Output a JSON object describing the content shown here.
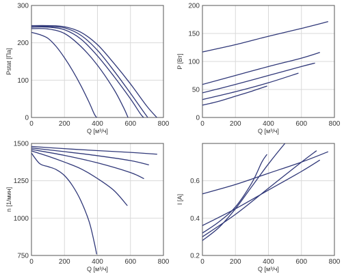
{
  "colors": {
    "curve": "#2f3778",
    "axis": "#555555",
    "grid": "#d9d9d9",
    "text": "#333333"
  },
  "chart_data": [
    {
      "id": "pstat",
      "type": "line",
      "xlabel": "Q [м³/ч]",
      "ylabel": "Pstat [Па]",
      "xlim": [
        0,
        800
      ],
      "ylim": [
        0,
        300
      ],
      "xticks": [
        0,
        200,
        400,
        600,
        800
      ],
      "yticks": [
        0,
        100,
        200,
        300
      ],
      "grid": true,
      "series": [
        {
          "points": [
            [
              0,
              228
            ],
            [
              50,
              222
            ],
            [
              100,
              212
            ],
            [
              150,
              190
            ],
            [
              200,
              160
            ],
            [
              250,
              125
            ],
            [
              300,
              85
            ],
            [
              350,
              40
            ],
            [
              380,
              10
            ],
            [
              395,
              0
            ]
          ]
        },
        {
          "points": [
            [
              0,
              238
            ],
            [
              100,
              237
            ],
            [
              200,
              225
            ],
            [
              300,
              190
            ],
            [
              400,
              140
            ],
            [
              500,
              75
            ],
            [
              560,
              25
            ],
            [
              585,
              0
            ]
          ]
        },
        {
          "points": [
            [
              0,
              242
            ],
            [
              100,
              242
            ],
            [
              200,
              235
            ],
            [
              300,
              210
            ],
            [
              400,
              165
            ],
            [
              500,
              110
            ],
            [
              600,
              50
            ],
            [
              660,
              10
            ],
            [
              680,
              0
            ]
          ]
        },
        {
          "points": [
            [
              0,
              245
            ],
            [
              100,
              244
            ],
            [
              200,
              240
            ],
            [
              300,
              220
            ],
            [
              400,
              180
            ],
            [
              500,
              125
            ],
            [
              600,
              65
            ],
            [
              680,
              15
            ],
            [
              705,
              0
            ]
          ]
        },
        {
          "points": [
            [
              0,
              246
            ],
            [
              100,
              246
            ],
            [
              200,
              243
            ],
            [
              300,
              228
            ],
            [
              400,
              195
            ],
            [
              500,
              145
            ],
            [
              600,
              90
            ],
            [
              700,
              30
            ],
            [
              760,
              0
            ]
          ]
        }
      ]
    },
    {
      "id": "power",
      "type": "line",
      "xlabel": "Q [м³/ч]",
      "ylabel": "P [Вт]",
      "xlim": [
        0,
        800
      ],
      "ylim": [
        0,
        200
      ],
      "xticks": [
        0,
        200,
        400,
        600,
        800
      ],
      "yticks": [
        0,
        50,
        100,
        150,
        200
      ],
      "grid": true,
      "series": [
        {
          "points": [
            [
              0,
              117
            ],
            [
              200,
              130
            ],
            [
              400,
              145
            ],
            [
              600,
              159
            ],
            [
              760,
              171
            ]
          ]
        },
        {
          "points": [
            [
              0,
              59
            ],
            [
              200,
              75
            ],
            [
              400,
              91
            ],
            [
              600,
              106
            ],
            [
              710,
              116
            ]
          ]
        },
        {
          "points": [
            [
              0,
              44
            ],
            [
              200,
              59
            ],
            [
              400,
              75
            ],
            [
              600,
              91
            ],
            [
              680,
              97
            ]
          ]
        },
        {
          "points": [
            [
              0,
              32
            ],
            [
              200,
              46
            ],
            [
              400,
              62
            ],
            [
              580,
              79
            ]
          ]
        },
        {
          "points": [
            [
              0,
              22
            ],
            [
              100,
              29
            ],
            [
              200,
              38
            ],
            [
              300,
              47
            ],
            [
              390,
              56
            ]
          ]
        }
      ]
    },
    {
      "id": "speed",
      "type": "line",
      "xlabel": "Q [м³/ч]",
      "ylabel": "n [1/мин]",
      "xlim": [
        0,
        800
      ],
      "ylim": [
        750,
        1500
      ],
      "xticks": [
        0,
        200,
        400,
        600,
        800
      ],
      "yticks": [
        750,
        1000,
        1250,
        1500
      ],
      "ytick_labels": [
        "750",
        "1000",
        "1250",
        "1500"
      ],
      "grid": true,
      "series": [
        {
          "points": [
            [
              0,
              1480
            ],
            [
              200,
              1465
            ],
            [
              400,
              1452
            ],
            [
              600,
              1440
            ],
            [
              760,
              1428
            ]
          ]
        },
        {
          "points": [
            [
              0,
              1470
            ],
            [
              200,
              1445
            ],
            [
              400,
              1418
            ],
            [
              600,
              1385
            ],
            [
              710,
              1357
            ]
          ]
        },
        {
          "points": [
            [
              0,
              1460
            ],
            [
              200,
              1420
            ],
            [
              400,
              1370
            ],
            [
              600,
              1305
            ],
            [
              680,
              1265
            ]
          ]
        },
        {
          "points": [
            [
              0,
              1450
            ],
            [
              100,
              1415
            ],
            [
              200,
              1375
            ],
            [
              300,
              1330
            ],
            [
              400,
              1265
            ],
            [
              500,
              1185
            ],
            [
              580,
              1085
            ]
          ]
        },
        {
          "points": [
            [
              0,
              1435
            ],
            [
              50,
              1365
            ],
            [
              100,
              1345
            ],
            [
              150,
              1325
            ],
            [
              200,
              1285
            ],
            [
              250,
              1215
            ],
            [
              300,
              1115
            ],
            [
              350,
              975
            ],
            [
              380,
              840
            ],
            [
              395,
              760
            ]
          ]
        }
      ]
    },
    {
      "id": "current",
      "type": "line",
      "xlabel": "Q [м³/ч]",
      "ylabel": "I [A]",
      "xlim": [
        0,
        800
      ],
      "ylim": [
        0.2,
        0.8
      ],
      "xticks": [
        0,
        200,
        400,
        600,
        800
      ],
      "yticks": [
        0.2,
        0.4,
        0.6
      ],
      "ytick_labels": [
        "0.2",
        "0.4",
        "0.6"
      ],
      "grid": true,
      "series": [
        {
          "points": [
            [
              0,
              0.53
            ],
            [
              200,
              0.58
            ],
            [
              400,
              0.64
            ],
            [
              600,
              0.7
            ],
            [
              760,
              0.755
            ]
          ]
        },
        {
          "points": [
            [
              0,
              0.36
            ],
            [
              200,
              0.45
            ],
            [
              400,
              0.55
            ],
            [
              600,
              0.65
            ],
            [
              710,
              0.71
            ]
          ]
        },
        {
          "points": [
            [
              0,
              0.3
            ],
            [
              200,
              0.42
            ],
            [
              400,
              0.56
            ],
            [
              600,
              0.7
            ],
            [
              690,
              0.76
            ]
          ]
        },
        {
          "points": [
            [
              0,
              0.28
            ],
            [
              100,
              0.35
            ],
            [
              200,
              0.45
            ],
            [
              300,
              0.57
            ],
            [
              400,
              0.69
            ],
            [
              500,
              0.8
            ],
            [
              580,
              0.88
            ]
          ]
        },
        {
          "points": [
            [
              0,
              0.32
            ],
            [
              100,
              0.38
            ],
            [
              200,
              0.46
            ],
            [
              300,
              0.59
            ],
            [
              360,
              0.7
            ],
            [
              390,
              0.74
            ]
          ]
        }
      ]
    }
  ]
}
